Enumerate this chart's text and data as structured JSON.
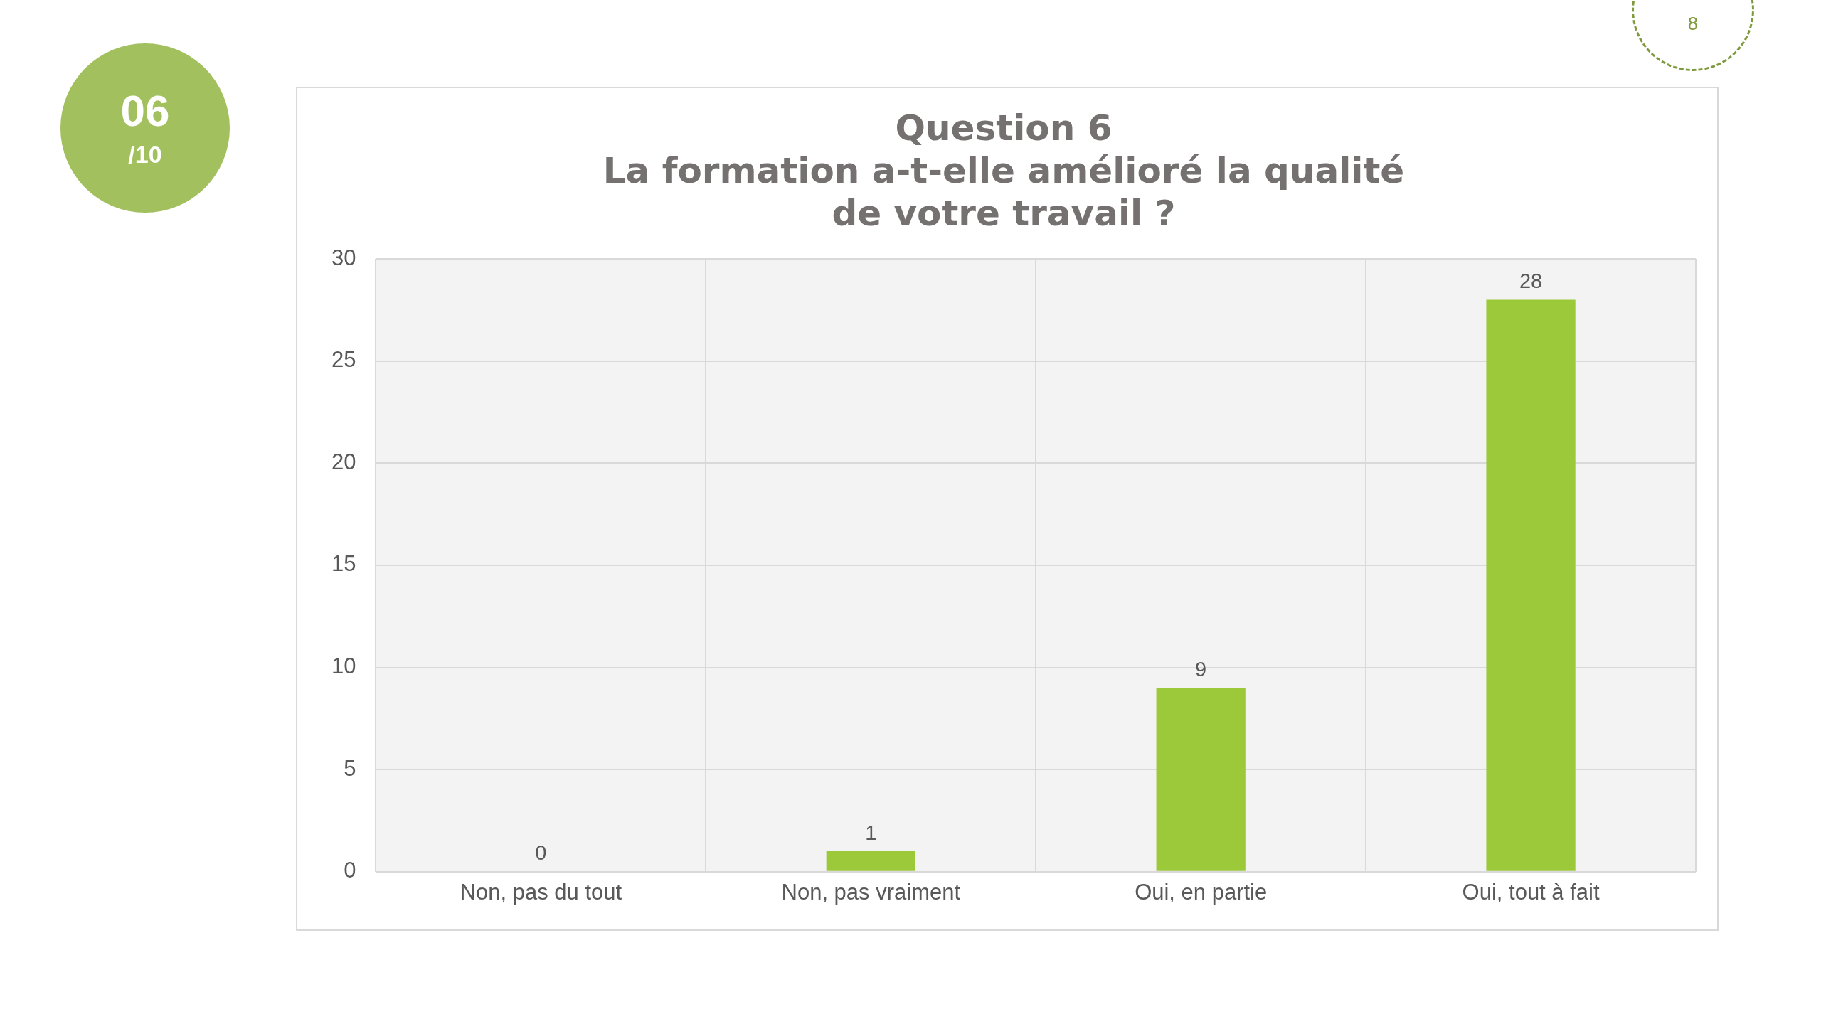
{
  "chart_data": {
    "type": "bar",
    "title": "Question 6\nLa formation a-t-elle amélioré la qualité\nde votre travail ?",
    "categories": [
      "Non, pas du tout",
      "Non, pas vraiment",
      "Oui, en partie",
      "Oui, tout à fait"
    ],
    "values": [
      0,
      1,
      9,
      28
    ],
    "color": "#9bc93a",
    "ylim": [
      0,
      30
    ],
    "yticks": [
      0,
      5,
      10,
      15,
      20,
      25,
      30
    ],
    "grid": true,
    "data_labels": true,
    "annotations": [
      "06",
      "/10",
      "8"
    ]
  }
}
